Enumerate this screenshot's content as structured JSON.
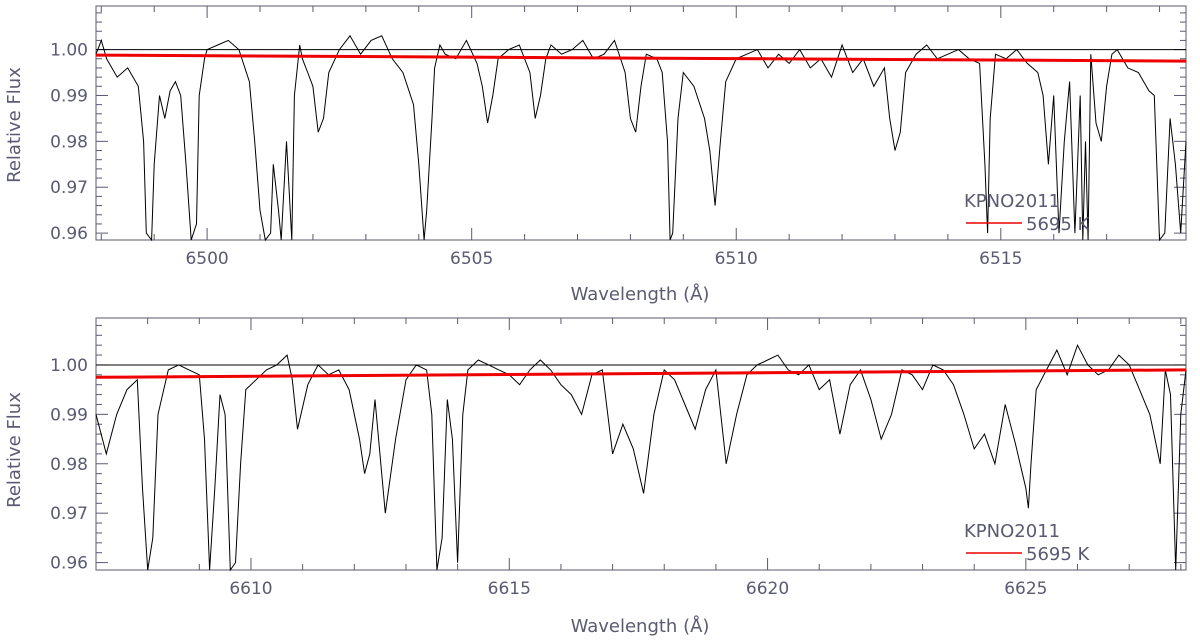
{
  "chart_data": [
    {
      "type": "line",
      "panel": "top",
      "xlabel": "Wavelength (Å)",
      "ylabel": "Relative Flux",
      "xlim": [
        6497.9,
        6518.5
      ],
      "ylim": [
        0.9585,
        1.0095
      ],
      "xticks": [
        6500,
        6505,
        6510,
        6515
      ],
      "xtick_labels": [
        "6500",
        "6505",
        "6510",
        "6515"
      ],
      "yticks": [
        0.96,
        0.97,
        0.98,
        0.99,
        1.0
      ],
      "ytick_labels": [
        "0.96",
        "0.97",
        "0.98",
        "0.99",
        "1.00"
      ],
      "reference_line_y": 1.0,
      "legend": {
        "title": "KPNO2011",
        "position": "bottom-right"
      },
      "series": [
        {
          "name": "",
          "color": "#000000",
          "x": [
            6497.9,
            6498.0,
            6498.1,
            6498.3,
            6498.5,
            6498.7,
            6498.8,
            6498.85,
            6498.95,
            6499.0,
            6499.1,
            6499.2,
            6499.3,
            6499.4,
            6499.5,
            6499.6,
            6499.7,
            6499.8,
            6499.85,
            6499.95,
            6500.0,
            6500.2,
            6500.4,
            6500.6,
            6500.8,
            6500.9,
            6501.0,
            6501.1,
            6501.2,
            6501.25,
            6501.35,
            6501.4,
            6501.5,
            6501.6,
            6501.65,
            6501.75,
            6501.8,
            6501.9,
            6502.0,
            6502.1,
            6502.2,
            6502.3,
            6502.5,
            6502.7,
            6502.9,
            6503.1,
            6503.3,
            6503.5,
            6503.7,
            6503.9,
            6504.0,
            6504.1,
            6504.15,
            6504.25,
            6504.3,
            6504.4,
            6504.5,
            6504.7,
            6504.9,
            6505.1,
            6505.2,
            6505.3,
            6505.4,
            6505.5,
            6505.7,
            6505.9,
            6506.1,
            6506.2,
            6506.3,
            6506.4,
            6506.5,
            6506.7,
            6506.9,
            6507.1,
            6507.3,
            6507.5,
            6507.7,
            6507.9,
            6508.0,
            6508.1,
            6508.2,
            6508.3,
            6508.5,
            6508.6,
            6508.7,
            6508.75,
            6508.8,
            6508.9,
            6509.0,
            6509.2,
            6509.4,
            6509.5,
            6509.6,
            6509.7,
            6509.8,
            6510.0,
            6510.2,
            6510.4,
            6510.6,
            6510.8,
            6511.0,
            6511.2,
            6511.4,
            6511.6,
            6511.8,
            6512.0,
            6512.2,
            6512.4,
            6512.6,
            6512.8,
            6512.9,
            6513.0,
            6513.1,
            6513.2,
            6513.4,
            6513.6,
            6513.8,
            6514.0,
            6514.2,
            6514.4,
            6514.6,
            6514.7,
            6514.75,
            6514.8,
            6514.9,
            6515.1,
            6515.3,
            6515.5,
            6515.7,
            6515.8,
            6515.9,
            6516.0,
            6516.1,
            6516.2,
            6516.3,
            6516.4,
            6516.5,
            6516.55,
            6516.6,
            6516.65,
            6516.7,
            6516.8,
            6516.9,
            6517.0,
            6517.1,
            6517.2,
            6517.4,
            6517.6,
            6517.8,
            6517.9,
            6518.0,
            6518.1,
            6518.2,
            6518.3,
            6518.4,
            6518.5
          ],
          "y": [
            0.999,
            1.002,
            0.998,
            0.994,
            0.996,
            0.992,
            0.98,
            0.96,
            0.958,
            0.975,
            0.99,
            0.985,
            0.991,
            0.993,
            0.99,
            0.975,
            0.958,
            0.962,
            0.99,
            0.998,
            1.0,
            1.001,
            1.002,
            1.0,
            0.993,
            0.98,
            0.965,
            0.958,
            0.96,
            0.975,
            0.965,
            0.958,
            0.98,
            0.958,
            0.99,
            1.001,
            0.998,
            0.995,
            0.992,
            0.982,
            0.985,
            0.995,
            1.0,
            1.003,
            0.999,
            1.002,
            1.003,
            0.998,
            0.995,
            0.988,
            0.975,
            0.958,
            0.965,
            0.985,
            0.996,
            1.001,
            0.999,
            0.998,
            1.002,
            0.997,
            0.992,
            0.984,
            0.99,
            0.998,
            1.0,
            1.001,
            0.995,
            0.985,
            0.99,
            0.998,
            1.001,
            0.999,
            1.0,
            1.002,
            0.998,
            0.999,
            1.002,
            0.995,
            0.985,
            0.982,
            0.992,
            0.999,
            0.998,
            0.995,
            0.98,
            0.958,
            0.96,
            0.985,
            0.995,
            0.992,
            0.985,
            0.978,
            0.966,
            0.98,
            0.993,
            0.998,
            0.999,
            1.0,
            0.996,
            0.999,
            0.997,
            1.0,
            0.996,
            0.998,
            0.994,
            1.001,
            0.995,
            0.998,
            0.992,
            0.996,
            0.985,
            0.978,
            0.982,
            0.995,
            0.999,
            1.001,
            0.998,
            0.999,
            1.0,
            0.998,
            0.997,
            0.975,
            0.96,
            0.985,
            0.999,
            0.998,
            1.0,
            0.997,
            0.995,
            0.99,
            0.975,
            0.99,
            0.96,
            0.98,
            0.993,
            0.96,
            0.99,
            0.958,
            0.98,
            0.958,
            0.999,
            0.984,
            0.98,
            0.992,
            0.999,
            1.0,
            0.996,
            0.995,
            0.991,
            0.99,
            0.958,
            0.96,
            0.985,
            0.975,
            0.96,
            0.98
          ]
        },
        {
          "name": "5695 K",
          "color": "#ee0000",
          "x": [
            6497.9,
            6518.5
          ],
          "y": [
            0.9988,
            0.9975
          ]
        }
      ]
    },
    {
      "type": "line",
      "panel": "bottom",
      "xlabel": "Wavelength (Å)",
      "ylabel": "Relative Flux",
      "xlim": [
        6607.0,
        6628.1
      ],
      "ylim": [
        0.9585,
        1.0095
      ],
      "xticks": [
        6610,
        6615,
        6620,
        6625
      ],
      "xtick_labels": [
        "6610",
        "6615",
        "6620",
        "6625"
      ],
      "yticks": [
        0.96,
        0.97,
        0.98,
        0.99,
        1.0
      ],
      "ytick_labels": [
        "0.96",
        "0.97",
        "0.98",
        "0.99",
        "1.00"
      ],
      "reference_line_y": 1.0,
      "legend": {
        "title": "KPNO2011",
        "position": "bottom-right"
      },
      "series": [
        {
          "name": "",
          "color": "#000000",
          "x": [
            6607.0,
            6607.2,
            6607.4,
            6607.6,
            6607.8,
            6607.9,
            6608.0,
            6608.1,
            6608.2,
            6608.4,
            6608.6,
            6608.8,
            6609.0,
            6609.1,
            6609.2,
            6609.3,
            6609.4,
            6609.5,
            6609.6,
            6609.7,
            6609.8,
            6609.9,
            6610.1,
            6610.3,
            6610.5,
            6610.7,
            6610.8,
            6610.9,
            6611.1,
            6611.3,
            6611.5,
            6611.7,
            6611.9,
            6612.1,
            6612.2,
            6612.3,
            6612.4,
            6612.6,
            6612.8,
            6613.0,
            6613.2,
            6613.4,
            6613.5,
            6613.6,
            6613.7,
            6613.8,
            6613.9,
            6614.0,
            6614.1,
            6614.2,
            6614.4,
            6614.6,
            6614.8,
            6615.0,
            6615.2,
            6615.4,
            6615.6,
            6615.8,
            6616.0,
            6616.2,
            6616.4,
            6616.6,
            6616.8,
            6617.0,
            6617.2,
            6617.4,
            6617.6,
            6617.8,
            6618.0,
            6618.2,
            6618.4,
            6618.6,
            6618.8,
            6619.0,
            6619.2,
            6619.4,
            6619.6,
            6619.8,
            6620.0,
            6620.2,
            6620.4,
            6620.6,
            6620.8,
            6621.0,
            6621.2,
            6621.4,
            6621.6,
            6621.8,
            6622.0,
            6622.2,
            6622.4,
            6622.6,
            6622.8,
            6623.0,
            6623.2,
            6623.4,
            6623.6,
            6623.8,
            6624.0,
            6624.2,
            6624.4,
            6624.6,
            6624.8,
            6625.0,
            6625.05,
            6625.1,
            6625.2,
            6625.4,
            6625.6,
            6625.8,
            6626.0,
            6626.2,
            6626.4,
            6626.6,
            6626.8,
            6627.0,
            6627.2,
            6627.4,
            6627.5,
            6627.6,
            6627.7,
            6627.8,
            6627.9,
            6628.0,
            6628.1
          ],
          "y": [
            0.99,
            0.982,
            0.99,
            0.995,
            0.997,
            0.975,
            0.958,
            0.965,
            0.99,
            0.999,
            1.0,
            0.999,
            0.998,
            0.985,
            0.958,
            0.975,
            0.994,
            0.99,
            0.958,
            0.96,
            0.98,
            0.995,
            0.997,
            0.999,
            1.0,
            1.002,
            0.997,
            0.987,
            0.996,
            1.0,
            0.998,
            0.999,
            0.995,
            0.985,
            0.978,
            0.982,
            0.993,
            0.97,
            0.985,
            0.997,
            1.0,
            0.999,
            0.99,
            0.958,
            0.965,
            0.993,
            0.985,
            0.96,
            0.99,
            0.999,
            1.001,
            1.0,
            0.999,
            0.998,
            0.996,
            0.999,
            1.001,
            0.999,
            0.996,
            0.994,
            0.99,
            0.998,
            0.999,
            0.982,
            0.988,
            0.983,
            0.974,
            0.99,
            0.999,
            0.997,
            0.992,
            0.987,
            0.995,
            0.999,
            0.98,
            0.99,
            0.998,
            1.0,
            1.001,
            1.002,
            0.999,
            0.998,
            1.0,
            0.995,
            0.997,
            0.986,
            0.996,
            0.999,
            0.993,
            0.985,
            0.99,
            0.999,
            0.998,
            0.995,
            1.0,
            0.999,
            0.996,
            0.99,
            0.983,
            0.986,
            0.98,
            0.992,
            0.984,
            0.975,
            0.971,
            0.98,
            0.995,
            0.999,
            1.003,
            0.998,
            1.004,
            1.0,
            0.998,
            0.999,
            1.002,
            1.0,
            0.995,
            0.99,
            0.985,
            0.98,
            0.999,
            0.994,
            0.958,
            0.99,
            0.999
          ]
        },
        {
          "name": "5695 K",
          "color": "#ee0000",
          "x": [
            6607.0,
            6628.1
          ],
          "y": [
            0.9975,
            0.999
          ]
        }
      ]
    }
  ]
}
